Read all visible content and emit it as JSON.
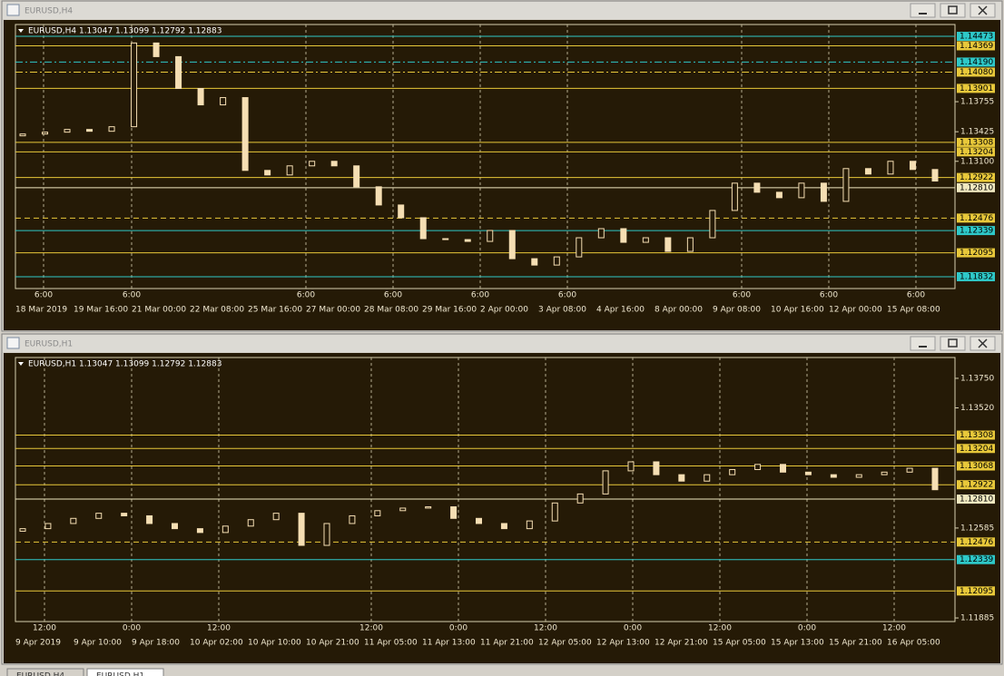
{
  "windows": [
    {
      "title": "EURUSD,H4",
      "header": "EURUSD,H4  1.13047 1.13099 1.12792 1.12883",
      "ylim": [
        1.11702,
        1.14603
      ],
      "yticks": [
        1.13755,
        1.13425,
        {
          "value": 1.131,
          "label": "1.13100"
        }
      ],
      "levels": [
        {
          "value": 1.14473,
          "label": "1.14473",
          "color": "#2ec8c8",
          "style": "solid"
        },
        {
          "value": 1.14369,
          "label": "1.14369",
          "color": "#e8c83a",
          "style": "solid"
        },
        {
          "value": 1.1419,
          "label": "1.14190",
          "color": "#2ec8c8",
          "style": "dashdot"
        },
        {
          "value": 1.1408,
          "label": "1.14080",
          "color": "#e8c83a",
          "style": "dashdot"
        },
        {
          "value": 1.13901,
          "label": "1.13901",
          "color": "#e8c83a",
          "style": "solid"
        },
        {
          "value": 1.13308,
          "label": "1.13308",
          "color": "#e8c83a",
          "style": "solid"
        },
        {
          "value": 1.13204,
          "label": "1.13204",
          "color": "#e8c83a",
          "style": "solid"
        },
        {
          "value": 1.12922,
          "label": "1.12922",
          "color": "#e8c83a",
          "style": "solid"
        },
        {
          "value": 1.1281,
          "label": "1.12810",
          "color": "#f0e8c0",
          "style": "solid"
        },
        {
          "value": 1.12476,
          "label": "1.12476",
          "color": "#e8c83a",
          "style": "dashed"
        },
        {
          "value": 1.12339,
          "label": "1.12339",
          "color": "#2ec8c8",
          "style": "solid"
        },
        {
          "value": 1.12095,
          "label": "1.12095",
          "color": "#e8c83a",
          "style": "solid"
        },
        {
          "value": 1.11832,
          "label": "1.11832",
          "color": "#2ec8c8",
          "style": "solid"
        }
      ],
      "first_open": 1.1338,
      "closes": [
        1.134,
        1.1342,
        1.1345,
        1.1343,
        1.1348,
        1.144,
        1.1425,
        1.139,
        1.1372,
        1.138,
        1.13,
        1.1295,
        1.1305,
        1.131,
        1.1305,
        1.1282,
        1.1262,
        1.1248,
        1.1225,
        1.1224,
        1.1222,
        1.1234,
        1.1203,
        1.1196,
        1.1205,
        1.1226,
        1.1236,
        1.1221,
        1.1226,
        1.1211,
        1.1226,
        1.1256,
        1.1286,
        1.1276,
        1.127,
        1.1286,
        1.1266,
        1.1302,
        1.1296,
        1.131,
        1.1301,
        1.12883
      ],
      "time_labels": [
        "6:00",
        "6:00",
        "6:00",
        "6:00",
        "6:00",
        "6:00",
        "6:00",
        "6:00",
        "6:00"
      ],
      "date_labels": [
        "18 Mar 2019",
        "19 Mar 16:00",
        "21 Mar 00:00",
        "22 Mar 08:00",
        "25 Mar 16:00",
        "27 Mar 00:00",
        "28 Mar 08:00",
        "29 Mar 16:00",
        "2 Apr 00:00",
        "3 Apr 08:00",
        "4 Apr 16:00",
        "8 Apr 00:00",
        "9 Apr 08:00",
        "10 Apr 16:00",
        "12 Apr 00:00",
        "15 Apr 08:00"
      ]
    },
    {
      "title": "EURUSD,H1",
      "header": "EURUSD,H1  1.13047 1.13099 1.12792 1.12883",
      "ylim": [
        1.11857,
        1.13912
      ],
      "yticks": [
        {
          "value": 1.1375,
          "label": "1.13750"
        },
        {
          "value": 1.1352,
          "label": "1.13520"
        },
        1.12585,
        1.11885
      ],
      "levels": [
        {
          "value": 1.13308,
          "label": "1.13308",
          "color": "#e8c83a",
          "style": "solid"
        },
        {
          "value": 1.13204,
          "label": "1.13204",
          "color": "#e8c83a",
          "style": "solid"
        },
        {
          "value": 1.13068,
          "label": "1.13068",
          "color": "#e8c83a",
          "style": "solid"
        },
        {
          "value": 1.12922,
          "label": "1.12922",
          "color": "#e8c83a",
          "style": "solid"
        },
        {
          "value": 1.1281,
          "label": "1.12810",
          "color": "#f0e8c0",
          "style": "solid"
        },
        {
          "value": 1.12476,
          "label": "1.12476",
          "color": "#e8c83a",
          "style": "dashed"
        },
        {
          "value": 1.12339,
          "label": "1.12339",
          "color": "#2ec8c8",
          "style": "solid"
        },
        {
          "value": 1.12095,
          "label": "1.12095",
          "color": "#e8c83a",
          "style": "solid"
        }
      ],
      "first_open": 1.1256,
      "closes": [
        1.1258,
        1.1262,
        1.1266,
        1.127,
        1.1268,
        1.1262,
        1.1258,
        1.1255,
        1.126,
        1.1265,
        1.127,
        1.1245,
        1.1262,
        1.1268,
        1.1272,
        1.1274,
        1.1275,
        1.1266,
        1.1262,
        1.1258,
        1.1264,
        1.1278,
        1.1285,
        1.1303,
        1.131,
        1.13,
        1.1295,
        1.13,
        1.1304,
        1.1308,
        1.1302,
        1.13,
        1.1298,
        1.13,
        1.1302,
        1.1305,
        1.12883
      ],
      "time_labels": [
        "12:00",
        "0:00",
        "12:00",
        "12:00",
        "0:00",
        "12:00",
        "0:00",
        "12:00",
        "0:00",
        "12:00"
      ],
      "date_labels": [
        "9 Apr 2019",
        "9 Apr 10:00",
        "9 Apr 18:00",
        "10 Apr 02:00",
        "10 Apr 10:00",
        "10 Apr 21:00",
        "11 Apr 05:00",
        "11 Apr 13:00",
        "11 Apr 21:00",
        "12 Apr 05:00",
        "12 Apr 13:00",
        "12 Apr 21:00",
        "15 Apr 05:00",
        "15 Apr 13:00",
        "15 Apr 21:00",
        "16 Apr 05:00"
      ]
    }
  ],
  "tabs": [
    "EURUSD,H4",
    "EURUSD,H1"
  ]
}
